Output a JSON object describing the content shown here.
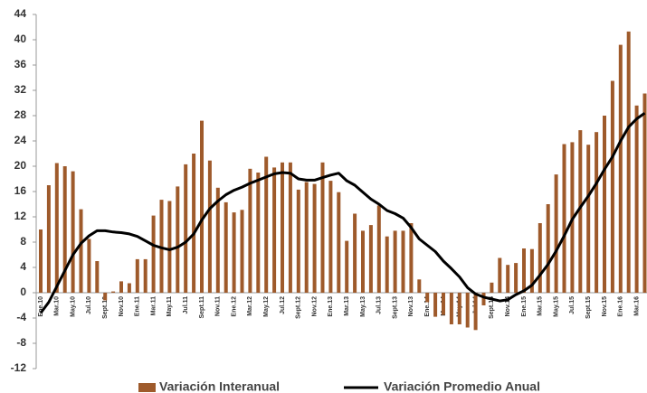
{
  "chart_data": {
    "type": "bar_line",
    "categories": [
      "Ene.10",
      null,
      "Mar.10",
      null,
      "May.10",
      null,
      "Jul.10",
      null,
      "Sept.10",
      null,
      "Nov.10",
      null,
      "Ene.11",
      null,
      "Mar.11",
      null,
      "May.11",
      null,
      "Jul.11",
      null,
      "Sept.11",
      null,
      "Nov.11",
      null,
      "Ene.12",
      null,
      "Mar.12",
      null,
      "May.12",
      null,
      "Jul.12",
      null,
      "Sept.12",
      null,
      "Nov.12",
      null,
      "Ene.13",
      null,
      "Mar.13",
      null,
      "May.13",
      null,
      "Jul.13",
      null,
      "Sept.13",
      null,
      "Nov.13",
      null,
      "Ene.14",
      null,
      "Mar.14",
      null,
      "May.14",
      null,
      "Jul.14",
      null,
      "Sept.14",
      null,
      "Nov.14",
      null,
      "Ene.15",
      null,
      "Mar.15",
      null,
      "May.15",
      null,
      "Jul.15",
      null,
      "Sept.15",
      null,
      "Nov.15",
      null,
      "Ene.16",
      null,
      "Mar.16",
      null
    ],
    "series": [
      {
        "name": "Variación Interanual",
        "type": "bar",
        "color": "#9e5a2b",
        "values": [
          10,
          17,
          20.5,
          20,
          19.2,
          13.2,
          8.5,
          5,
          -1.2,
          0.2,
          1.8,
          1.5,
          5.3,
          5.3,
          12.2,
          14.7,
          14.5,
          16.8,
          20.3,
          22,
          27.2,
          20.9,
          16.6,
          14.3,
          12.7,
          13.1,
          19.6,
          19,
          21.5,
          19.8,
          20.6,
          20.6,
          16.3,
          17.5,
          17.2,
          20.6,
          17.7,
          15.9,
          8.2,
          12.5,
          9.8,
          10.7,
          13.8,
          8.9,
          9.8,
          9.8,
          11,
          2.1,
          -1.5,
          -3.8,
          -3.5,
          -5,
          -5,
          -5.5,
          -5.9,
          -2,
          1.6,
          5.5,
          4.4,
          4.7,
          7,
          6.9,
          11,
          14,
          18.7,
          23.5,
          23.8,
          25.7,
          23.4,
          25.4,
          28,
          33.5,
          39.2,
          41.3,
          29.6,
          31.5
        ]
      },
      {
        "name": "Variación Promedio Anual",
        "type": "line",
        "color": "#000000",
        "values": [
          -3.2,
          -1.5,
          1,
          3.5,
          6,
          7.8,
          9,
          9.8,
          9.8,
          9.6,
          9.5,
          9.3,
          8.9,
          8.2,
          7.5,
          7.1,
          6.8,
          7.2,
          8,
          9.3,
          11.5,
          13.3,
          14.5,
          15.5,
          16.2,
          16.7,
          17.3,
          17.8,
          18.3,
          18.8,
          19,
          18.9,
          18,
          17.8,
          17.8,
          18.2,
          18.6,
          18.9,
          17.7,
          17,
          15.9,
          14.8,
          14,
          13,
          12.5,
          11.8,
          10.3,
          8.5,
          7.5,
          6.5,
          5,
          3.8,
          2.5,
          0.8,
          -0.2,
          -0.7,
          -1,
          -1.3,
          -1.1,
          -0.3,
          0.3,
          1.2,
          2.8,
          4.5,
          6.6,
          9,
          11.6,
          13.5,
          15.3,
          17.3,
          19.5,
          21.5,
          24,
          26.2,
          27.5,
          28.4
        ]
      }
    ],
    "ylim": [
      -12,
      44
    ],
    "yticks": [
      -12,
      -8,
      -4,
      0,
      4,
      8,
      12,
      16,
      20,
      24,
      28,
      32,
      36,
      40,
      44
    ],
    "grid": false
  }
}
